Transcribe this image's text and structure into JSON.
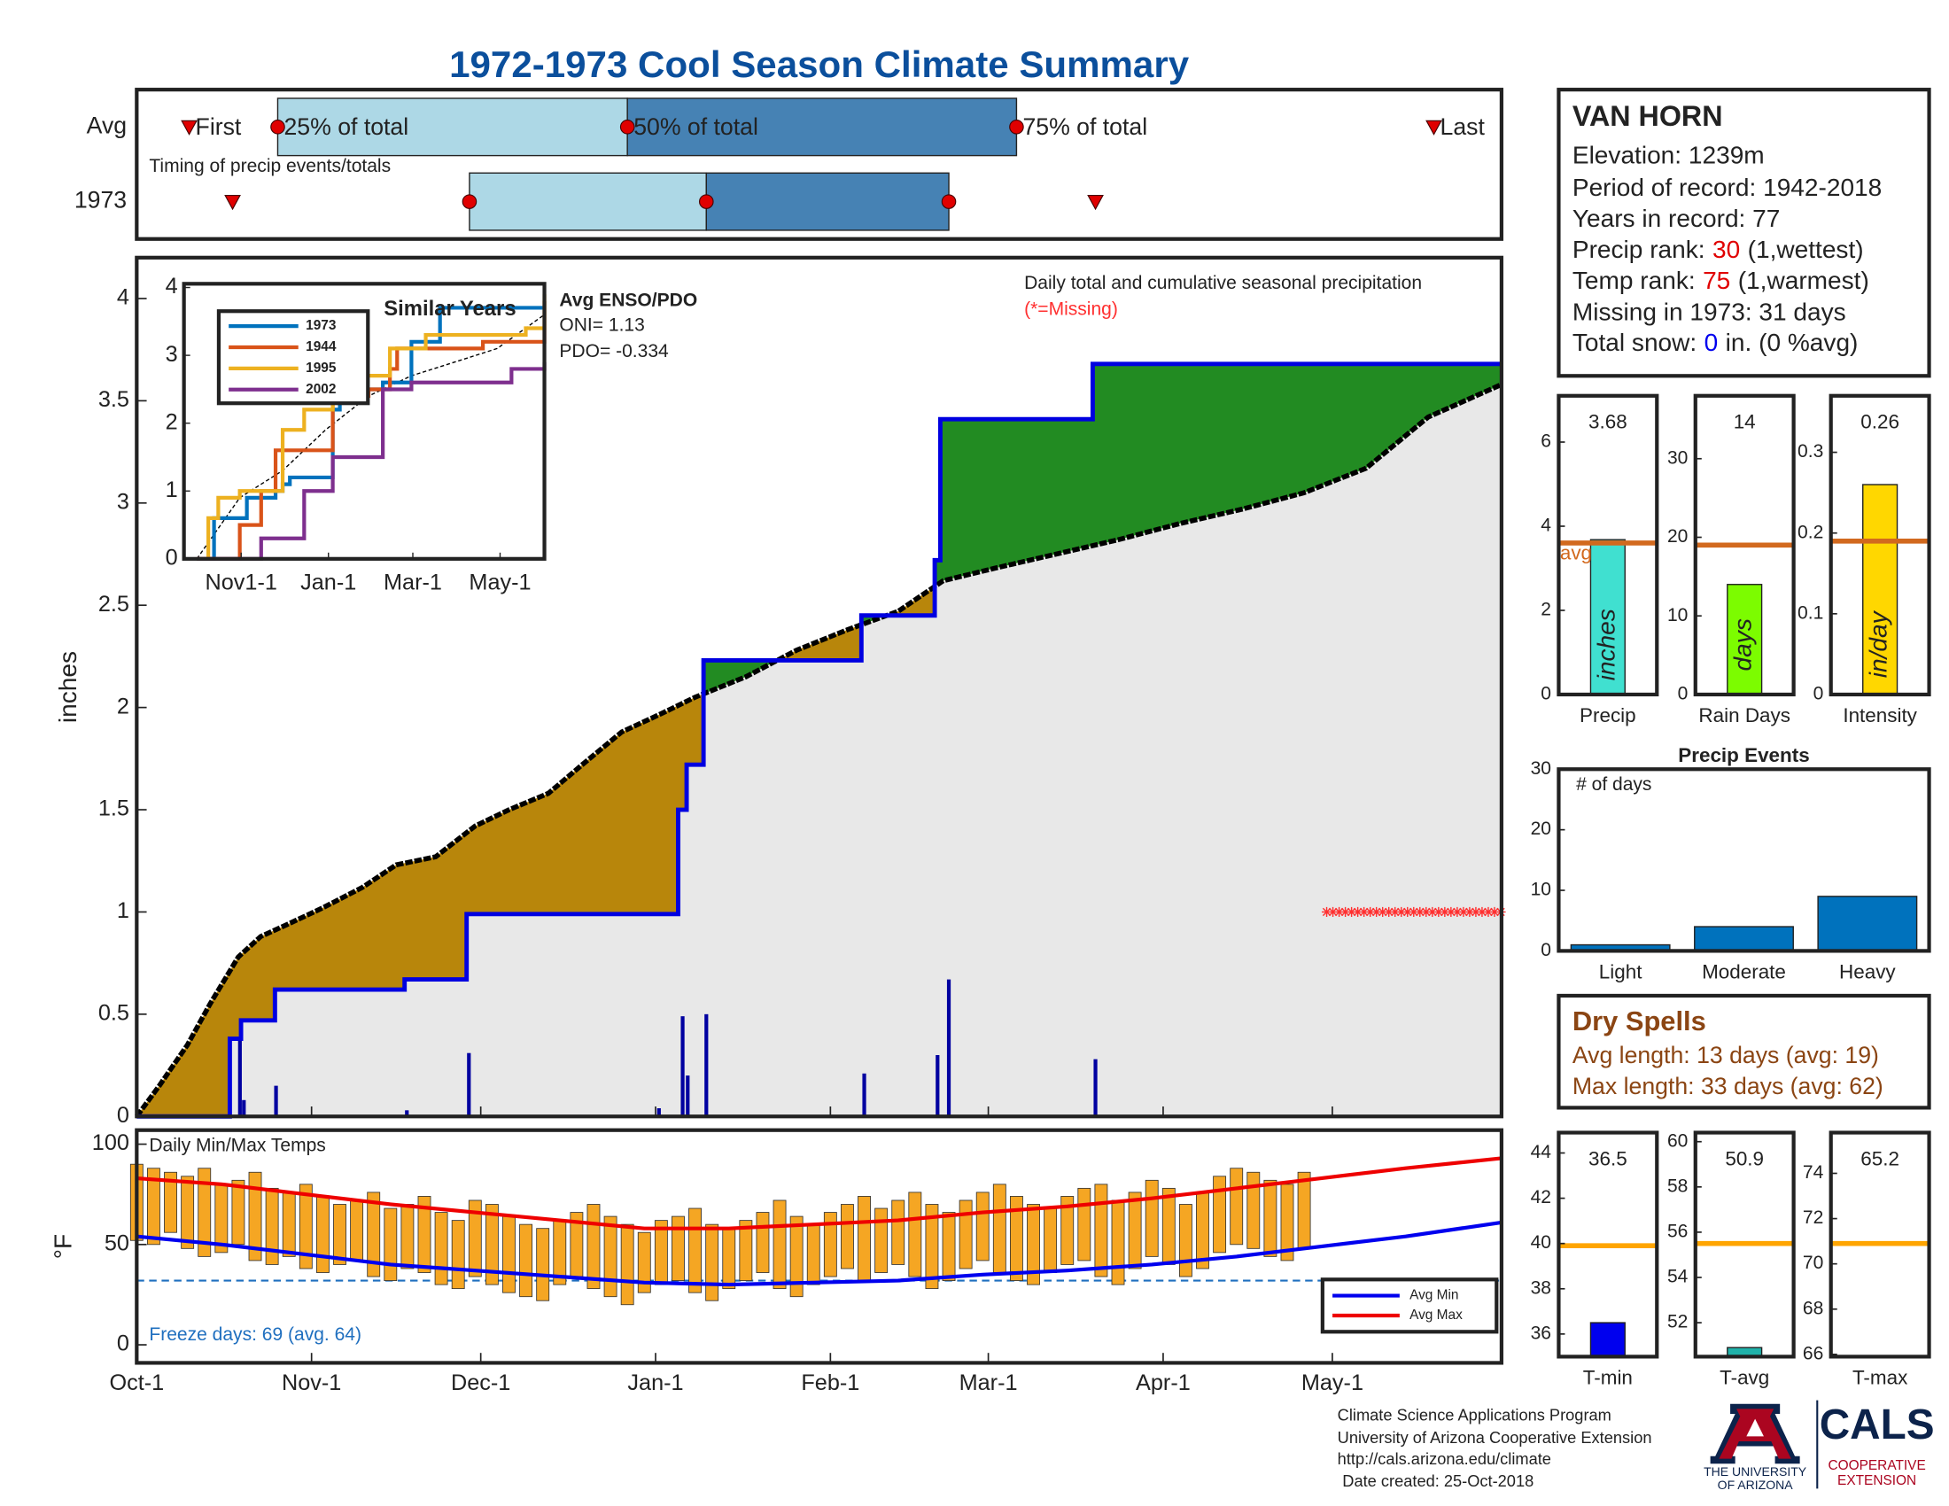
{
  "title": "1972-1973 Cool Season Climate Summary",
  "chart_data": [
    {
      "type": "timeline",
      "xlim": [
        0,
        242
      ],
      "rows": [
        {
          "label": "Avg",
          "first": 9.3,
          "q25": 25,
          "q50": 87,
          "q75": 156,
          "last": 230
        },
        {
          "label": "1973",
          "first": 17,
          "q25": 59,
          "q50": 101,
          "q75": 144,
          "last": 170
        }
      ],
      "labels": {
        "first": "First",
        "q25": "25% of total",
        "q50": "50% of total",
        "q75": "75% of total",
        "last": "Last"
      },
      "note": "Timing of precip events/totals",
      "colors": {
        "early": "#add8e6",
        "late": "#4682b4",
        "marker": "#e00000"
      }
    },
    {
      "type": "cumulative",
      "title": "Daily total and cumulative seasonal precipitation",
      "subtitle": "(*=Missing)",
      "ylabel": "inches",
      "xlim": [
        0,
        242
      ],
      "ylim": [
        0,
        4.2
      ],
      "yticks": [
        0,
        0.5,
        1,
        1.5,
        2,
        2.5,
        3,
        3.5,
        4
      ],
      "average": {
        "x": [
          0,
          4,
          9,
          13,
          18,
          22,
          26,
          33,
          40,
          46,
          53,
          60,
          66,
          73,
          79,
          86,
          93,
          99,
          108,
          117,
          126,
          135,
          143,
          152,
          163,
          174,
          185,
          196,
          207,
          218,
          229,
          242
        ],
        "values": [
          0,
          0.15,
          0.35,
          0.55,
          0.78,
          0.88,
          0.93,
          1.02,
          1.12,
          1.23,
          1.27,
          1.42,
          1.5,
          1.58,
          1.72,
          1.88,
          1.97,
          2.05,
          2.15,
          2.28,
          2.38,
          2.47,
          2.62,
          2.68,
          2.75,
          2.82,
          2.9,
          2.97,
          3.05,
          3.17,
          3.42,
          3.58
        ]
      },
      "season": {
        "x": [
          0,
          16.5,
          18.5,
          24.5,
          47.5,
          58.5,
          96,
          97.5,
          100.5,
          128.5,
          141.5,
          142.5,
          169.5,
          242
        ],
        "values": [
          0,
          0.38,
          0.47,
          0.62,
          0.67,
          0.99,
          1.5,
          1.72,
          2.23,
          2.45,
          2.72,
          3.41,
          3.68,
          3.68
        ]
      },
      "daily": {
        "x": [
          18.3,
          19,
          24.7,
          47.9,
          58.9,
          92.6,
          96.8,
          97.7,
          101,
          129,
          142,
          144,
          170
        ],
        "values": [
          0.38,
          0.08,
          0.15,
          0.03,
          0.31,
          0.04,
          0.49,
          0.2,
          0.5,
          0.21,
          0.3,
          0.67,
          0.28
        ]
      },
      "missing": {
        "x": [
          211,
          242
        ],
        "value": 1
      },
      "colors": {
        "average": "#000000",
        "season": "#0000e0",
        "daily": "#0000a0",
        "below": "#b8860b",
        "above": "#228b22",
        "base": "#e8e8e8",
        "missing": "#ff3030"
      }
    },
    {
      "type": "line",
      "title": "Similar Years",
      "xlim": [
        -9,
        243
      ],
      "ylim": [
        0,
        4
      ],
      "yticks": [
        0,
        1,
        2,
        3,
        4
      ],
      "xticks": [
        {
          "value": 31,
          "label": "Nov1-1"
        },
        {
          "value": 92,
          "label": "Jan-1"
        },
        {
          "value": 151,
          "label": "Mar-1"
        },
        {
          "value": 212,
          "label": "May-1"
        }
      ],
      "series": [
        {
          "name": "1973",
          "color": "#0072bd",
          "x": [
            0,
            12,
            20,
            35,
            55,
            60,
            65,
            95,
            100,
            130,
            150,
            170,
            243
          ],
          "values": [
            0,
            0.6,
            0.6,
            0.9,
            1.0,
            1.1,
            1.2,
            2.2,
            2.5,
            2.6,
            3.2,
            3.7,
            3.7
          ]
        },
        {
          "name": "1944",
          "color": "#d95319",
          "x": [
            0,
            25,
            30,
            45,
            55,
            70,
            95,
            120,
            135,
            140,
            200,
            243
          ],
          "values": [
            0,
            0,
            0.5,
            1.0,
            1.6,
            1.6,
            2.4,
            2.5,
            2.8,
            3.1,
            3.2,
            3.8
          ]
        },
        {
          "name": "1995",
          "color": "#edb120",
          "x": [
            0,
            8,
            15,
            30,
            45,
            60,
            75,
            95,
            110,
            135,
            160,
            200,
            230,
            243
          ],
          "values": [
            0,
            0.6,
            0.9,
            1.0,
            1.0,
            1.9,
            2.2,
            2.5,
            2.7,
            3.1,
            3.3,
            3.3,
            3.4,
            3.9
          ]
        },
        {
          "name": "2002",
          "color": "#7e2f8e",
          "x": [
            0,
            40,
            45,
            75,
            95,
            105,
            130,
            150,
            180,
            220,
            243
          ],
          "values": [
            0,
            0,
            0.3,
            1.0,
            1.5,
            1.5,
            2.5,
            2.6,
            2.6,
            2.8,
            2.9
          ]
        }
      ],
      "average": {
        "x": [
          0,
          30,
          60,
          90,
          120,
          150,
          180,
          210,
          243
        ],
        "values": [
          0,
          0.9,
          1.3,
          1.9,
          2.4,
          2.7,
          2.9,
          3.1,
          3.6
        ]
      },
      "enso": {
        "title": "Avg ENSO/PDO",
        "oni": "ONI= 1.13",
        "pdo": "PDO= -0.334"
      }
    },
    {
      "type": "range_bar",
      "title": "Daily Min/Max Temps",
      "ylabel": "°F",
      "xlim": [
        0,
        242
      ],
      "ylim": [
        -9,
        107
      ],
      "yticks": [
        0,
        50,
        100
      ],
      "xticks": [
        {
          "value": 0,
          "label": "Oct-1"
        },
        {
          "value": 31,
          "label": "Nov-1"
        },
        {
          "value": 61,
          "label": "Dec-1"
        },
        {
          "value": 92,
          "label": "Jan-1"
        },
        {
          "value": 123,
          "label": "Feb-1"
        },
        {
          "value": 151,
          "label": "Mar-1"
        },
        {
          "value": 182,
          "label": "Apr-1"
        },
        {
          "value": 212,
          "label": "May-1"
        }
      ],
      "x": [
        0,
        3,
        6,
        9,
        12,
        15,
        18,
        21,
        24,
        27,
        30,
        33,
        36,
        39,
        42,
        45,
        48,
        51,
        54,
        57,
        60,
        63,
        66,
        69,
        72,
        75,
        78,
        81,
        84,
        87,
        90,
        93,
        96,
        99,
        102,
        105,
        108,
        111,
        114,
        117,
        120,
        123,
        126,
        129,
        132,
        135,
        138,
        141,
        144,
        147,
        150,
        153,
        156,
        159,
        162,
        165,
        168,
        171,
        174,
        177,
        180,
        183,
        186,
        189,
        192,
        195,
        198,
        201,
        204,
        207
      ],
      "max": [
        90,
        88,
        86,
        84,
        88,
        80,
        82,
        86,
        78,
        76,
        80,
        74,
        70,
        72,
        76,
        68,
        70,
        74,
        66,
        62,
        72,
        70,
        64,
        60,
        58,
        62,
        66,
        70,
        64,
        60,
        56,
        62,
        64,
        68,
        60,
        58,
        62,
        66,
        72,
        64,
        60,
        66,
        70,
        74,
        68,
        72,
        76,
        70,
        66,
        72,
        76,
        80,
        74,
        70,
        68,
        74,
        78,
        80,
        72,
        76,
        82,
        78,
        70,
        76,
        84,
        88,
        86,
        82,
        80,
        86
      ],
      "min": [
        52,
        50,
        56,
        48,
        44,
        46,
        50,
        42,
        40,
        44,
        38,
        36,
        40,
        42,
        34,
        32,
        38,
        36,
        30,
        28,
        34,
        30,
        26,
        24,
        22,
        30,
        34,
        28,
        24,
        20,
        26,
        30,
        32,
        26,
        22,
        28,
        32,
        36,
        28,
        24,
        30,
        34,
        38,
        32,
        36,
        40,
        34,
        28,
        32,
        38,
        42,
        36,
        32,
        30,
        36,
        40,
        42,
        34,
        30,
        38,
        44,
        40,
        34,
        38,
        46,
        50,
        48,
        44,
        42,
        48
      ],
      "bar_color": "#f5a623",
      "avg_min": {
        "name": "Avg Min",
        "color": "#0000ee",
        "x": [
          0,
          15,
          30,
          45,
          60,
          75,
          90,
          105,
          120,
          135,
          150,
          165,
          180,
          195,
          210,
          225,
          242
        ],
        "values": [
          54,
          50,
          45,
          40,
          37,
          34,
          31,
          30,
          31,
          32,
          35,
          37,
          40,
          44,
          49,
          54,
          61
        ]
      },
      "avg_max": {
        "name": "Avg Max",
        "color": "#ee0000",
        "x": [
          0,
          15,
          30,
          45,
          60,
          75,
          90,
          105,
          120,
          135,
          150,
          165,
          180,
          195,
          210,
          225,
          242
        ],
        "values": [
          83,
          80,
          75,
          70,
          66,
          62,
          58,
          58,
          60,
          62,
          66,
          69,
          73,
          78,
          83,
          88,
          93
        ]
      },
      "freeze": {
        "value": 32,
        "color": "#1f6fbf"
      },
      "note": "Freeze days: 69 (avg. 64)"
    },
    {
      "type": "bar",
      "categories": [
        "Precip"
      ],
      "values": [
        3.68
      ],
      "avg": 3.6,
      "avg_label": "avg",
      "bar_text": "inches",
      "color": "#40e0d0",
      "avg_color": "#d2691e",
      "ylim": [
        0,
        7.1
      ],
      "yticks": [
        0,
        2,
        4,
        6
      ]
    },
    {
      "type": "bar",
      "categories": [
        "Rain Days"
      ],
      "values": [
        14
      ],
      "avg": 19,
      "bar_text": "days",
      "color": "#7cfc00",
      "avg_color": "#d2691e",
      "ylim": [
        0,
        38
      ],
      "yticks": [
        0,
        10,
        20,
        30
      ]
    },
    {
      "type": "bar",
      "categories": [
        "Intensity"
      ],
      "values": [
        0.26
      ],
      "avg": 0.19,
      "bar_text": "in/day",
      "color": "#ffd700",
      "avg_color": "#d2691e",
      "ylim": [
        0,
        0.37
      ],
      "yticks": [
        0,
        0.1,
        0.2,
        0.3
      ]
    },
    {
      "type": "bar",
      "title": "Precip Events",
      "ylabel": "# of days",
      "categories": [
        "Light",
        "Moderate",
        "Heavy"
      ],
      "values": [
        1,
        4,
        9
      ],
      "color": "#0072bd",
      "ylim": [
        0,
        30
      ],
      "yticks": [
        0,
        10,
        20,
        30
      ]
    },
    {
      "type": "bar",
      "categories": [
        "T-min"
      ],
      "values": [
        36.5
      ],
      "avg": 39.9,
      "color": "#0000ee",
      "avg_color": "#ffa500",
      "ylim": [
        35,
        44.9
      ],
      "yticks": [
        36,
        38,
        40,
        42,
        44
      ]
    },
    {
      "type": "bar",
      "categories": [
        "T-avg"
      ],
      "values": [
        50.9
      ],
      "avg": 55.5,
      "color": "#20b2aa",
      "avg_color": "#ffa500",
      "ylim": [
        50.5,
        60.4
      ],
      "yticks": [
        52,
        54,
        56,
        58,
        60
      ]
    },
    {
      "type": "bar",
      "categories": [
        "T-max"
      ],
      "values": [
        65.2
      ],
      "avg": 70.9,
      "color": "#ee3030",
      "avg_color": "#ffa500",
      "ylim": [
        65.9,
        75.8
      ],
      "yticks": [
        66,
        68,
        70,
        72,
        74
      ]
    }
  ],
  "station": {
    "name": "VAN HORN",
    "elevation": "Elevation: 1239m",
    "period": "Period of record: 1942-2018",
    "years": "Years in record: 77",
    "precip_rank": {
      "label": "Precip rank:",
      "value": "30",
      "note": "(1,wettest)"
    },
    "temp_rank": {
      "label": "Temp rank:",
      "value": "75",
      "note": "(1,warmest)"
    },
    "missing": "Missing in 1973: 31 days",
    "snow": {
      "label": "Total snow:",
      "value": "0",
      "note": "in. (0 %avg)"
    }
  },
  "dry_spells": {
    "title": "Dry Spells",
    "avg": "Avg length: 13 days (avg: 19)",
    "max": "Max length: 33 days (avg: 62)"
  },
  "footer": {
    "lines": [
      "Climate Science Applications Program",
      "University of Arizona Cooperative Extension",
      "http://cals.arizona.edu/climate",
      "Date created: 25-Oct-2018"
    ],
    "logo": {
      "university": [
        "THE UNIVERSITY",
        "OF ARIZONA"
      ],
      "cals": "CALS",
      "extension": [
        "COOPERATIVE",
        "EXTENSION"
      ]
    }
  }
}
